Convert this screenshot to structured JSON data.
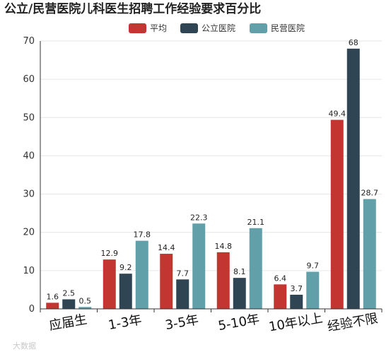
{
  "watermark": "大数据",
  "chart_data": {
    "type": "bar",
    "title": "公立/民营医院儿科医生招聘工作经验要求百分比",
    "categories": [
      "应届生",
      "1-3年",
      "3-5年",
      "5-10年",
      "10年以上",
      "经验不限"
    ],
    "series": [
      {
        "name": "平均",
        "color": "#c23531",
        "values": [
          1.6,
          12.9,
          14.4,
          14.8,
          6.4,
          49.4
        ]
      },
      {
        "name": "公立医院",
        "color": "#2f4554",
        "values": [
          2.5,
          9.2,
          7.7,
          8.1,
          3.7,
          68
        ]
      },
      {
        "name": "民营医院",
        "color": "#61a0a8",
        "values": [
          0.5,
          17.8,
          22.3,
          21.1,
          9.7,
          28.7
        ]
      }
    ],
    "ylim": [
      0,
      70
    ],
    "yticks": [
      0,
      10,
      20,
      30,
      40,
      50,
      60,
      70
    ],
    "grid": true,
    "legend_position": "top-right"
  }
}
